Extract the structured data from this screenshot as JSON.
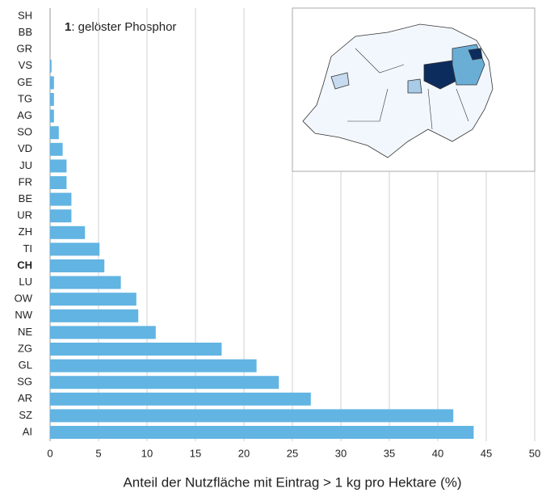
{
  "chart_data": {
    "type": "bar",
    "orientation": "horizontal",
    "annotation_number": "1",
    "annotation": ": gelöster Phosphor",
    "xlabel": "Anteil der Nutzfläche mit Eintrag > 1 kg pro Hektare (%)",
    "categories": [
      "SH",
      "BB",
      "GR",
      "VS",
      "GE",
      "TG",
      "AG",
      "SO",
      "VD",
      "JU",
      "FR",
      "BE",
      "UR",
      "ZH",
      "TI",
      "CH",
      "LU",
      "OW",
      "NW",
      "NE",
      "ZG",
      "GL",
      "SG",
      "AR",
      "SZ",
      "AI"
    ],
    "values": [
      0,
      0,
      0,
      0.15,
      0.4,
      0.4,
      0.4,
      0.9,
      1.3,
      1.7,
      1.7,
      2.2,
      2.2,
      3.6,
      5.1,
      5.6,
      7.3,
      8.9,
      9.1,
      10.9,
      17.7,
      21.3,
      23.6,
      26.9,
      41.6,
      43.7
    ],
    "highlight": "CH",
    "color": "#62b4e2",
    "xlim": [
      0,
      50
    ],
    "xticks": [
      0,
      5,
      10,
      15,
      20,
      25,
      30,
      35,
      40,
      45,
      50
    ],
    "grid": true
  }
}
